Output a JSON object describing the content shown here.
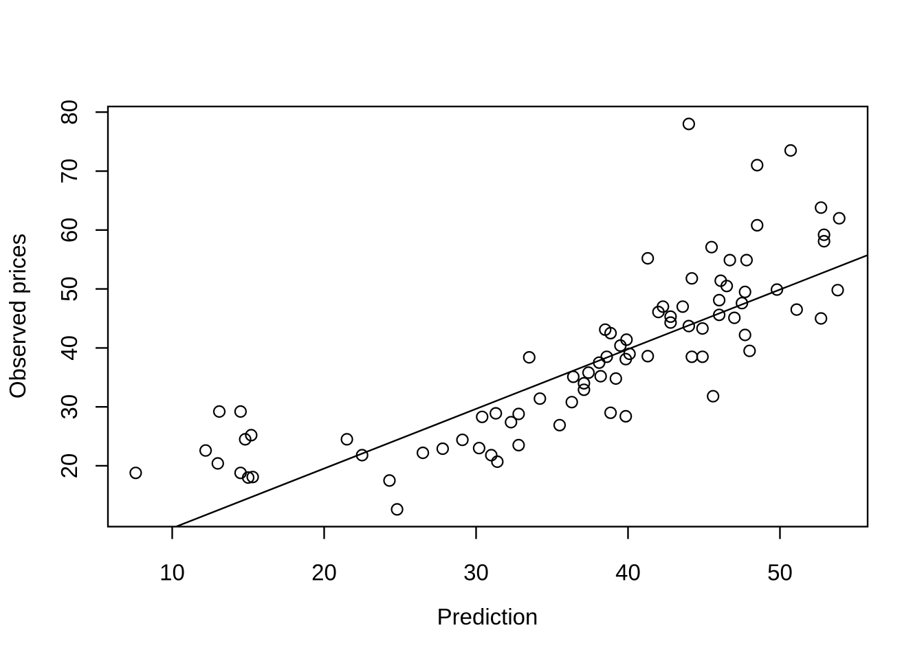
{
  "chart_data": {
    "type": "scatter",
    "title": "",
    "xlabel": "Prediction",
    "ylabel": "Observed prices",
    "x_ticks": [
      10,
      20,
      30,
      40,
      50
    ],
    "y_ticks": [
      20,
      30,
      40,
      50,
      60,
      70,
      80
    ],
    "xlim": [
      5.77,
      55.77
    ],
    "ylim": [
      9.68,
      80.96
    ],
    "grid": false,
    "legend": null,
    "marker": "open-circle",
    "marker_color": "#000000",
    "line": {
      "type": "reference-line",
      "slope": 1.012,
      "intercept": -0.7,
      "color": "#000000"
    },
    "points": [
      [
        7.6,
        18.8
      ],
      [
        12.2,
        22.6
      ],
      [
        13.1,
        29.2
      ],
      [
        14.5,
        29.2
      ],
      [
        13.0,
        20.4
      ],
      [
        14.5,
        18.8
      ],
      [
        15.0,
        18.0
      ],
      [
        15.3,
        18.1
      ],
      [
        14.8,
        24.5
      ],
      [
        15.2,
        25.2
      ],
      [
        21.5,
        24.5
      ],
      [
        22.5,
        21.8
      ],
      [
        24.3,
        17.5
      ],
      [
        24.8,
        12.6
      ],
      [
        26.5,
        22.2
      ],
      [
        27.8,
        22.9
      ],
      [
        29.1,
        24.4
      ],
      [
        30.2,
        23.0
      ],
      [
        30.4,
        28.3
      ],
      [
        31.3,
        28.9
      ],
      [
        31.0,
        21.8
      ],
      [
        31.4,
        20.7
      ],
      [
        32.3,
        27.4
      ],
      [
        32.8,
        28.8
      ],
      [
        32.8,
        23.5
      ],
      [
        33.5,
        38.4
      ],
      [
        34.2,
        31.4
      ],
      [
        35.5,
        26.9
      ],
      [
        36.4,
        35.1
      ],
      [
        36.3,
        30.8
      ],
      [
        37.4,
        35.8
      ],
      [
        37.1,
        34.0
      ],
      [
        37.1,
        32.9
      ],
      [
        38.2,
        35.2
      ],
      [
        39.2,
        34.8
      ],
      [
        38.1,
        37.5
      ],
      [
        38.6,
        38.5
      ],
      [
        38.5,
        43.1
      ],
      [
        38.85,
        42.5
      ],
      [
        39.5,
        40.4
      ],
      [
        39.9,
        41.4
      ],
      [
        40.1,
        39.0
      ],
      [
        39.85,
        38.1
      ],
      [
        41.3,
        38.6
      ],
      [
        38.85,
        29.0
      ],
      [
        39.85,
        28.4
      ],
      [
        44.2,
        38.5
      ],
      [
        44.9,
        38.5
      ],
      [
        45.6,
        31.8
      ],
      [
        41.3,
        55.2
      ],
      [
        42.3,
        47.0
      ],
      [
        42.0,
        46.1
      ],
      [
        43.6,
        47.0
      ],
      [
        42.8,
        45.3
      ],
      [
        42.8,
        44.3
      ],
      [
        44.0,
        43.7
      ],
      [
        44.9,
        43.3
      ],
      [
        44.2,
        51.8
      ],
      [
        45.5,
        57.1
      ],
      [
        46.0,
        48.1
      ],
      [
        46.1,
        51.4
      ],
      [
        46.5,
        50.5
      ],
      [
        46.7,
        54.9
      ],
      [
        47.8,
        54.9
      ],
      [
        47.7,
        49.5
      ],
      [
        46.0,
        45.6
      ],
      [
        47.0,
        45.1
      ],
      [
        47.5,
        47.6
      ],
      [
        47.7,
        42.2
      ],
      [
        48.0,
        39.5
      ],
      [
        48.5,
        60.8
      ],
      [
        48.5,
        71.0
      ],
      [
        44.0,
        78.0
      ],
      [
        50.7,
        73.5
      ],
      [
        49.8,
        49.9
      ],
      [
        51.1,
        46.5
      ],
      [
        52.7,
        63.8
      ],
      [
        53.9,
        62.0
      ],
      [
        52.9,
        59.2
      ],
      [
        52.9,
        58.1
      ],
      [
        53.8,
        49.8
      ],
      [
        52.7,
        45.0
      ]
    ]
  }
}
